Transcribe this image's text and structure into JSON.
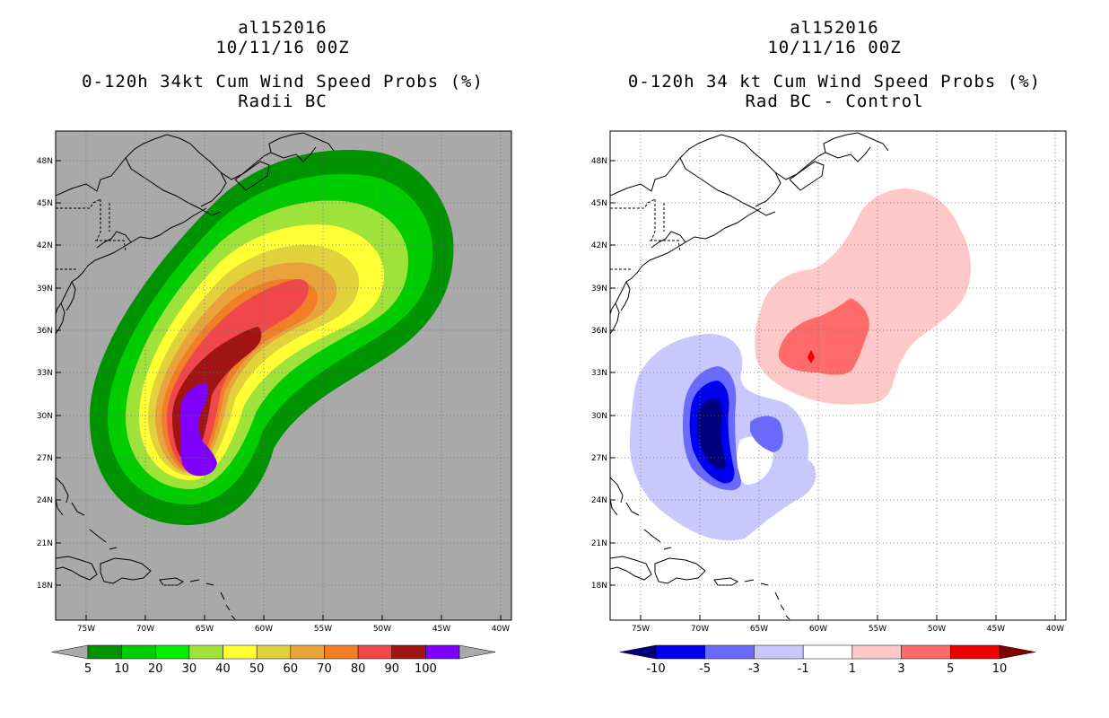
{
  "panels": [
    {
      "id": "left",
      "line1": "al152016",
      "line2": "10/11/16 00Z",
      "line3": "0-120h 34kt Cum Wind Speed Probs (%)",
      "line4": "Radii BC",
      "background": "#a9a9a9",
      "colorbar": {
        "labels": [
          "5",
          "10",
          "20",
          "30",
          "40",
          "50",
          "60",
          "70",
          "80",
          "90",
          "100"
        ],
        "colors": [
          "#009300",
          "#00cd00",
          "#00ee00",
          "#9fe33a",
          "#ffff33",
          "#e1d23c",
          "#e8a43a",
          "#f07f26",
          "#f0474b",
          "#a01414",
          "#8000ff"
        ],
        "under_color": "#a9a9a9",
        "over_color": "#a9a9a9"
      },
      "contours": [
        {
          "level": "5",
          "color": "#009300"
        },
        {
          "level": "10",
          "color": "#00cd00"
        },
        {
          "level": "20",
          "color": "#9fe33a"
        },
        {
          "level": "30",
          "color": "#ffff33"
        },
        {
          "level": "40",
          "color": "#e1d23c"
        },
        {
          "level": "50",
          "color": "#e8a43a"
        },
        {
          "level": "60",
          "color": "#f07f26"
        },
        {
          "level": "70",
          "color": "#f0474b"
        },
        {
          "level": "80",
          "color": "#a01414"
        },
        {
          "level": "90",
          "color": "#8000ff"
        }
      ]
    },
    {
      "id": "right",
      "line1": "al152016",
      "line2": "10/11/16 00Z",
      "line3": "0-120h 34 kt Cum Wind Speed Probs (%)",
      "line4": "Rad BC - Control",
      "background": "#ffffff",
      "colorbar": {
        "labels": [
          "-10",
          "-5",
          "-3",
          "-1",
          "1",
          "3",
          "5",
          "10"
        ],
        "colors": [
          "#0000ee",
          "#6a6aff",
          "#c8c8ff",
          "#ffffff",
          "#ffc8c8",
          "#ff6a6a",
          "#ee0000"
        ],
        "under_color": "#00007f",
        "over_color": "#7f0000"
      }
    }
  ],
  "map": {
    "lon_ticks": [
      "75W",
      "70W",
      "65W",
      "60W",
      "55W",
      "50W",
      "45W",
      "40W"
    ],
    "lat_ticks": [
      "48N",
      "45N",
      "42N",
      "39N",
      "36N",
      "33N",
      "30N",
      "27N",
      "24N",
      "21N",
      "18N"
    ],
    "coast_color": "#000000",
    "grid_color": "#6e6e6e"
  }
}
